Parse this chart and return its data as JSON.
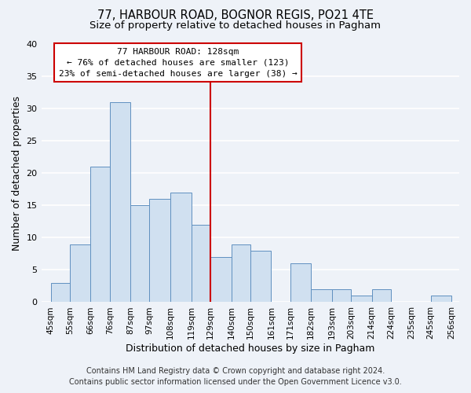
{
  "title": "77, HARBOUR ROAD, BOGNOR REGIS, PO21 4TE",
  "subtitle": "Size of property relative to detached houses in Pagham",
  "xlabel": "Distribution of detached houses by size in Pagham",
  "ylabel": "Number of detached properties",
  "bar_left_edges": [
    45,
    55,
    66,
    76,
    87,
    97,
    108,
    119,
    129,
    140,
    150,
    161,
    171,
    182,
    193,
    203,
    214,
    224,
    235,
    245
  ],
  "bar_heights": [
    3,
    9,
    21,
    31,
    15,
    16,
    17,
    12,
    7,
    9,
    8,
    0,
    6,
    2,
    2,
    1,
    2,
    0,
    0,
    1
  ],
  "bar_widths": [
    10,
    11,
    10,
    11,
    10,
    11,
    11,
    10,
    11,
    10,
    11,
    10,
    11,
    11,
    10,
    11,
    10,
    11,
    10,
    11
  ],
  "tick_labels": [
    "45sqm",
    "55sqm",
    "66sqm",
    "76sqm",
    "87sqm",
    "97sqm",
    "108sqm",
    "119sqm",
    "129sqm",
    "140sqm",
    "150sqm",
    "161sqm",
    "171sqm",
    "182sqm",
    "193sqm",
    "203sqm",
    "214sqm",
    "224sqm",
    "235sqm",
    "245sqm",
    "256sqm"
  ],
  "tick_positions": [
    45,
    55,
    66,
    76,
    87,
    97,
    108,
    119,
    129,
    140,
    150,
    161,
    171,
    182,
    193,
    203,
    214,
    224,
    235,
    245,
    256
  ],
  "bar_color": "#d0e0f0",
  "bar_edge_color": "#6090c0",
  "vline_x": 129,
  "vline_color": "#cc0000",
  "annotation_title": "77 HARBOUR ROAD: 128sqm",
  "annotation_line1": "← 76% of detached houses are smaller (123)",
  "annotation_line2": "23% of semi-detached houses are larger (38) →",
  "annotation_box_facecolor": "#ffffff",
  "annotation_box_edgecolor": "#cc0000",
  "ylim": [
    0,
    40
  ],
  "xlim": [
    40,
    260
  ],
  "yticks": [
    0,
    5,
    10,
    15,
    20,
    25,
    30,
    35,
    40
  ],
  "footer1": "Contains HM Land Registry data © Crown copyright and database right 2024.",
  "footer2": "Contains public sector information licensed under the Open Government Licence v3.0.",
  "bg_color": "#eef2f8",
  "plot_bg_color": "#eef2f8",
  "grid_color": "#ffffff",
  "title_fontsize": 10.5,
  "subtitle_fontsize": 9.5,
  "axis_label_fontsize": 9,
  "tick_fontsize": 7.5,
  "annotation_fontsize": 8,
  "footer_fontsize": 7
}
